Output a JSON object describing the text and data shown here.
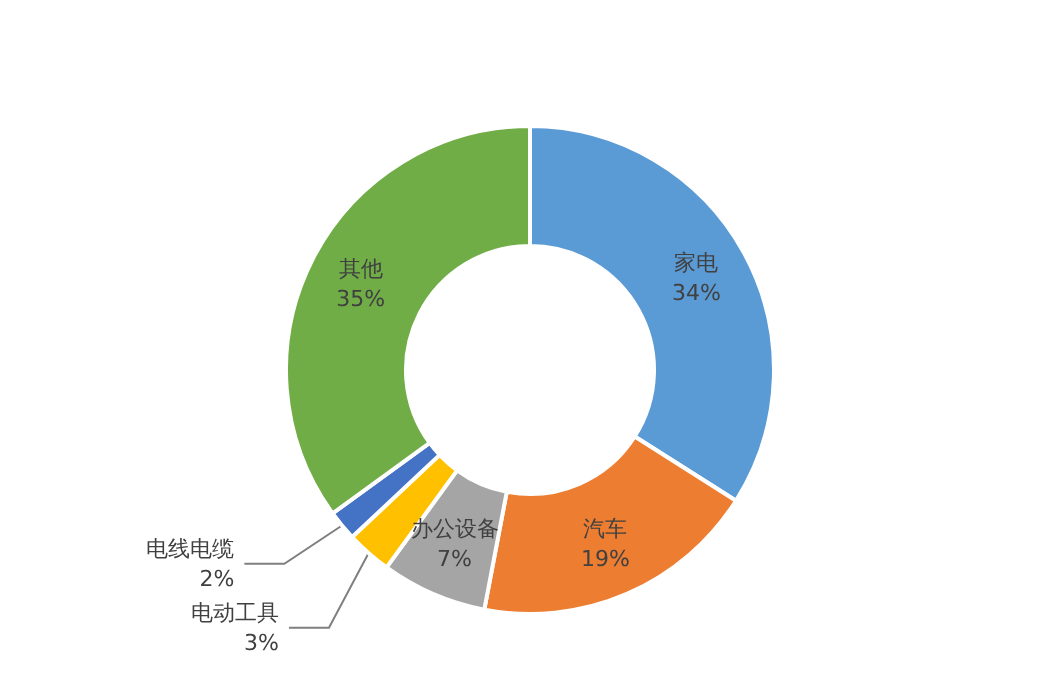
{
  "chart_data": {
    "type": "donut",
    "categories": [
      "家电",
      "汽车",
      "办公设备",
      "电动工具",
      "电线电缆",
      "其他"
    ],
    "values": [
      34,
      19,
      7,
      3,
      2,
      35
    ],
    "value_labels": [
      "34%",
      "19%",
      "7%",
      "3%",
      "2%",
      "35%"
    ],
    "colors": [
      "#5b9bd5",
      "#ed7d31",
      "#a5a5a5",
      "#ffc000",
      "#4472c4",
      "#70ad47"
    ],
    "legend": false
  }
}
